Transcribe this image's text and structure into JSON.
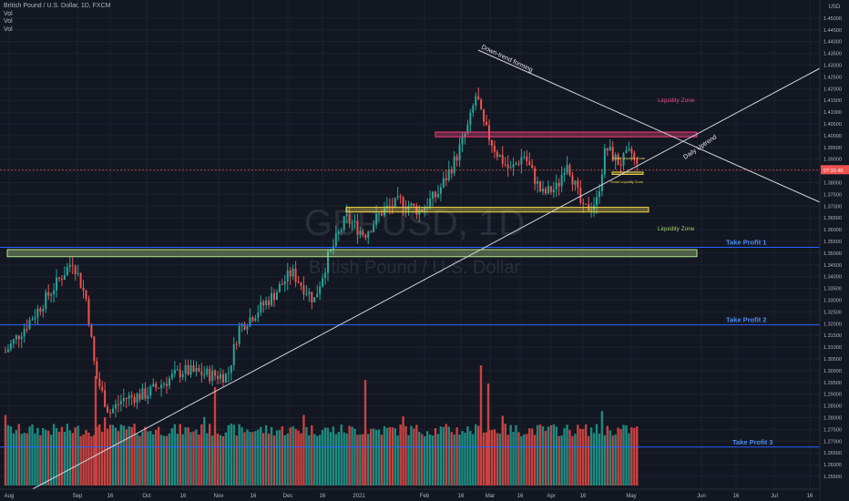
{
  "header": {
    "symbol_title": "British Pound / U.S. Dollar, 1D, FXCM",
    "vol_labels": [
      "Vol",
      "Vol",
      "Vol"
    ]
  },
  "watermark": {
    "symbol": "GBPUSD, 1D",
    "name": "British Pound / U.S. Dollar"
  },
  "price_axis": {
    "currency": "USD",
    "ticks": [
      "1.25500",
      "1.26000",
      "1.26500",
      "1.27000",
      "1.27500",
      "1.28000",
      "1.28500",
      "1.29000",
      "1.29500",
      "1.30000",
      "1.30500",
      "1.31000",
      "1.31500",
      "1.32000",
      "1.32500",
      "1.33000",
      "1.33500",
      "1.34000",
      "1.34500",
      "1.35000",
      "1.35500",
      "1.36000",
      "1.36500",
      "1.37000",
      "1.37500",
      "1.38000",
      "1.38500",
      "1.39000",
      "1.39500",
      "1.40000",
      "1.40500",
      "1.41000",
      "1.41500",
      "1.42000",
      "1.42500",
      "1.43000",
      "1.43500",
      "1.44000",
      "1.44500",
      "1.45000"
    ],
    "current_price_label": "07:31:46",
    "current_price": 1.3855
  },
  "time_axis": {
    "labels": [
      "Aug",
      "Sep",
      "16",
      "Oct",
      "16",
      "Nov",
      "16",
      "Dec",
      "16",
      "2021",
      "Feb",
      "16",
      "Mar",
      "16",
      "Apr",
      "16",
      "May",
      "Jun",
      "16",
      "Jul",
      "16"
    ]
  },
  "annotations": {
    "liquidity_zone_top": "Liquidity Zone",
    "liquidity_zone_mid": "Liquidity Zone",
    "small_liquidity_zone_a": "Small Liquidity Zone",
    "small_liquidity_zone_b": "Small Liquidity Zone",
    "downtrend": "Down-trend forming",
    "uptrend": "Daily Uptrend",
    "take_profit_1": "Take Profit 1",
    "take_profit_2": "Take Profit 2",
    "take_profit_3": "Take Profit 3"
  },
  "levels": {
    "take_profit_1": 1.3525,
    "take_profit_2": 1.3195,
    "take_profit_3": 1.2675,
    "liquidity_zone_top": [
      1.3995,
      1.4015
    ],
    "liquidity_zone_mid": [
      1.3485,
      1.3515
    ],
    "small_zone_a": [
      1.3835,
      1.3845
    ],
    "small_zone_b": [
      1.3675,
      1.3695
    ]
  },
  "colors": {
    "background": "#131722",
    "up": "#26a69a",
    "down": "#ef5350",
    "vol_up": "#1e8a80",
    "vol_down": "#c94240",
    "grid": "#1e222d",
    "axis_text": "#b2b5be",
    "take_profit": "#2962ff",
    "take_profit_text": "#4a8af4",
    "liquidity_top_fill": "#f23f7a",
    "liquidity_mid_fill": "#b5e48c",
    "small_zone_fill": "#f0d54a",
    "trend_line": "#d1d4dc"
  }
}
